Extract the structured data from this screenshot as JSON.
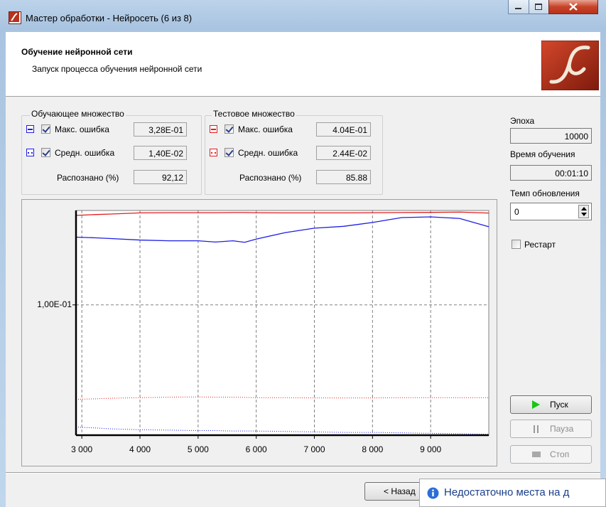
{
  "window": {
    "title": "Мастер обработки - Нейросеть (6 из 8)"
  },
  "header": {
    "title": "Обучение нейронной сети",
    "subtitle": "Запуск процесса обучения нейронной сети"
  },
  "train_set": {
    "title": "Обучающее множество",
    "max_error": {
      "label": "Макс. ошибка",
      "value": "3,28E-01"
    },
    "mean_error": {
      "label": "Средн. ошибка",
      "value": "1,40E-02"
    },
    "recognized": {
      "label": "Распознано (%)",
      "value": "92,12"
    }
  },
  "test_set": {
    "title": "Тестовое множество",
    "max_error": {
      "label": "Макс. ошибка",
      "value": "4.04E-01"
    },
    "mean_error": {
      "label": "Средн. ошибка",
      "value": "2.44E-02"
    },
    "recognized": {
      "label": "Распознано (%)",
      "value": "85.88"
    }
  },
  "side": {
    "epoch": {
      "label": "Эпоха",
      "value": "10000"
    },
    "time": {
      "label": "Время обучения",
      "value": "00:01:10"
    },
    "update_rate": {
      "label": "Темп обновления",
      "value": "0"
    },
    "restart": "Рестарт",
    "buttons": [
      "Пуск",
      "Пауза",
      "Стоп"
    ]
  },
  "footer": {
    "back": "< Назад",
    "notification": "Недостаточно места на д"
  },
  "chart_data": {
    "type": "line",
    "x": [
      2900,
      3250,
      3500,
      4000,
      4500,
      5000,
      5300,
      5600,
      5800,
      6000,
      6500,
      7000,
      7500,
      8000,
      8500,
      9000,
      9500,
      10000
    ],
    "series": [
      {
        "color": "#1e1ee6",
        "dash": "solid",
        "values": [
          0.28,
          0.277,
          0.274,
          0.268,
          0.265,
          0.265,
          0.26,
          0.265,
          0.259,
          0.272,
          0.3,
          0.321,
          0.33,
          0.35,
          0.377,
          0.381,
          0.372,
          0.328
        ]
      },
      {
        "color": "#1e1ee6",
        "dash": "dotted",
        "values": [
          0.0156,
          0.0154,
          0.0152,
          0.015,
          0.0149,
          0.0148,
          0.0148,
          0.0147,
          0.0147,
          0.0147,
          0.0146,
          0.0145,
          0.0144,
          0.0144,
          0.0143,
          0.0142,
          0.0141,
          0.014
        ]
      },
      {
        "color": "#e01e1e",
        "dash": "solid",
        "values": [
          0.39,
          0.395,
          0.398,
          0.405,
          0.406,
          0.406,
          0.406,
          0.407,
          0.407,
          0.406,
          0.405,
          0.405,
          0.405,
          0.406,
          0.407,
          0.408,
          0.41,
          0.404
        ]
      },
      {
        "color": "#e01e1e",
        "dash": "dotted",
        "values": [
          0.0238,
          0.024,
          0.0242,
          0.0244,
          0.0246,
          0.0247,
          0.0246,
          0.0246,
          0.0245,
          0.0244,
          0.0244,
          0.0243,
          0.0243,
          0.0243,
          0.0244,
          0.0244,
          0.0244,
          0.0244
        ]
      }
    ],
    "xlim": [
      2900,
      10000
    ],
    "xticks": [
      {
        "value": 3000,
        "label": "3 000"
      },
      {
        "value": 4000,
        "label": "4 000"
      },
      {
        "value": 5000,
        "label": "5 000"
      },
      {
        "value": 6000,
        "label": "6 000"
      },
      {
        "value": 7000,
        "label": "7 000"
      },
      {
        "value": 8000,
        "label": "8 000"
      },
      {
        "value": 9000,
        "label": "9 000"
      }
    ],
    "ylim": [
      0.0138,
      0.42
    ],
    "yticks": [
      {
        "value": 0.1,
        "label": "1,00E-01"
      }
    ],
    "log_y": true,
    "grid": true
  }
}
